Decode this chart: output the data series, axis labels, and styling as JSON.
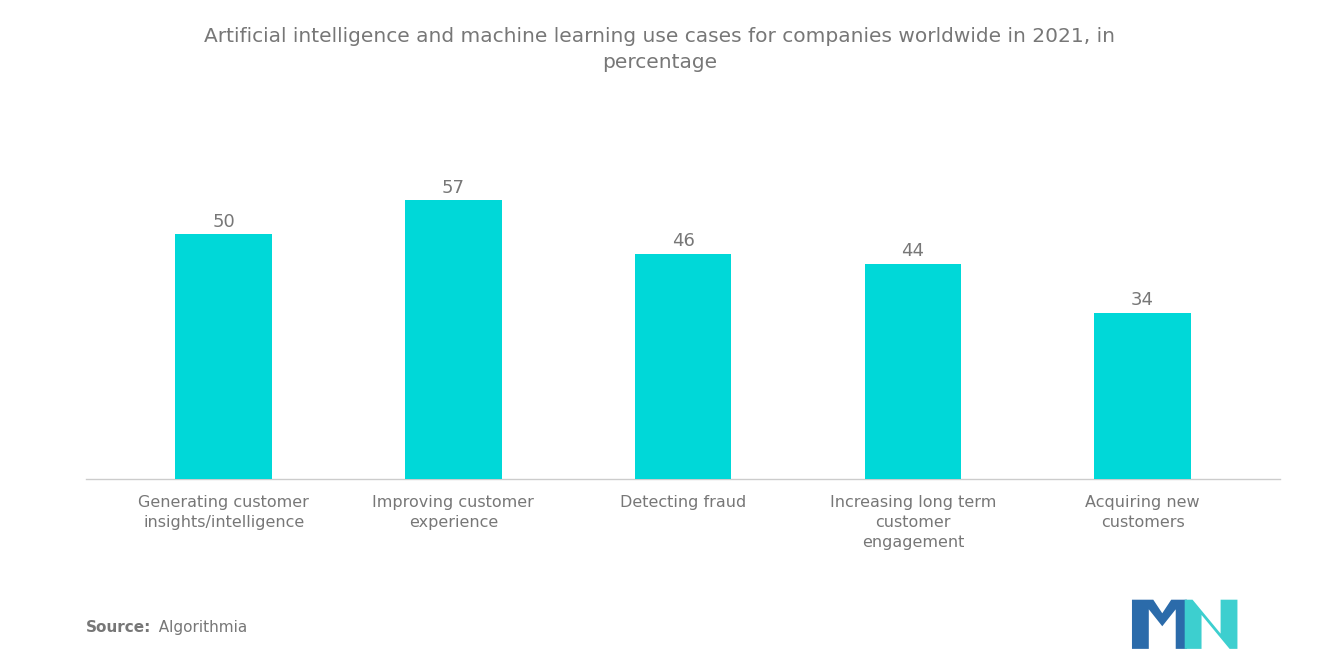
{
  "title": "Artificial intelligence and machine learning use cases for companies worldwide in 2021, in\npercentage",
  "categories": [
    "Generating customer\ninsights/intelligence",
    "Improving customer\nexperience",
    "Detecting fraud",
    "Increasing long term\ncustomer\nengagement",
    "Acquiring new\ncustomers"
  ],
  "values": [
    50,
    57,
    46,
    44,
    34
  ],
  "bar_color": "#00D8D8",
  "background_color": "#ffffff",
  "source_bold": "Source:",
  "source_normal": "  Algorithmia",
  "title_fontsize": 14.5,
  "label_fontsize": 11.5,
  "value_fontsize": 13,
  "source_fontsize": 11,
  "ylim": [
    0,
    68
  ],
  "bar_width": 0.42,
  "text_color": "#777777",
  "spine_color": "#cccccc"
}
